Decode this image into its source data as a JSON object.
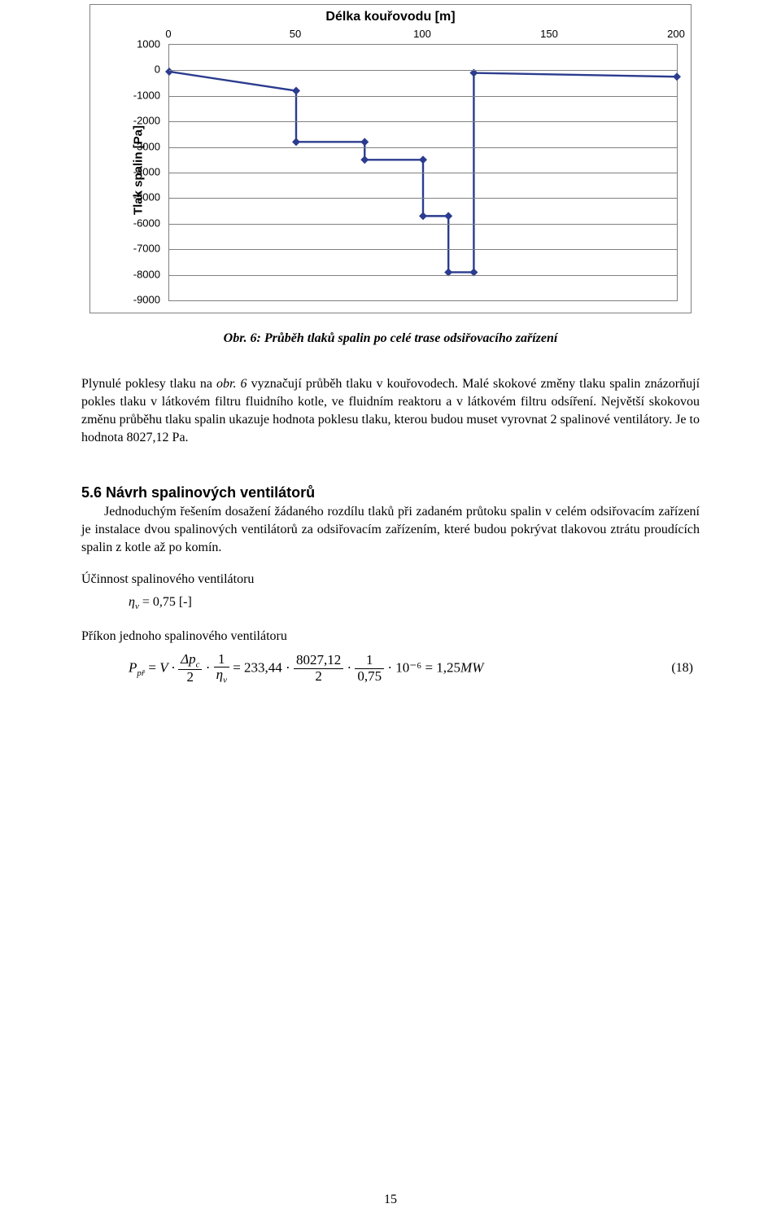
{
  "chart": {
    "type": "line",
    "title": "Délka kouřovodu [m]",
    "ylabel": "Tlak spalin [Pa]",
    "title_fontsize": 16,
    "label_fontsize": 15,
    "tick_fontsize": 13,
    "background_color": "#ffffff",
    "border_color": "#808080",
    "grid_color": "#808080",
    "line_color": "#2b3c8f",
    "marker_color": "#2b3c8f",
    "line_width": 2.4,
    "marker_size": 5,
    "xlim": [
      0,
      200
    ],
    "ylim": [
      -9000,
      1000
    ],
    "xticks": [
      0,
      50,
      100,
      150,
      200
    ],
    "yticks": [
      1000,
      0,
      -1000,
      -2000,
      -3000,
      -4000,
      -5000,
      -6000,
      -7000,
      -8000,
      -9000
    ],
    "points_x": [
      0,
      50,
      50,
      77,
      77,
      100,
      100,
      110,
      110,
      120,
      120,
      200
    ],
    "points_y": [
      -50,
      -800,
      -2800,
      -2800,
      -3500,
      -3500,
      -5700,
      -5700,
      -7900,
      -7900,
      -100,
      -250
    ]
  },
  "caption": "Obr. 6: Průběh tlaků spalin po celé trase odsiřovacího zařízení",
  "para1": "Plynulé poklesy tlaku na obr. 6 vyznačují průběh tlaku v kouřovodech. Malé skokové změny tlaku spalin znázorňují pokles tlaku v látkovém filtru fluidního kotle, ve fluidním reaktoru a v látkovém filtru odsíření. Největší skokovou změnu průběhu tlaku spalin ukazuje hodnota poklesu tlaku, kterou budou muset vyrovnat 2 spalinové ventilátory. Je to hodnota 8027,12 Pa.",
  "section": "5.6 Návrh spalinových ventilátorů",
  "para2": "Jednoduchým řešením dosažení žádaného rozdílu tlaků při zadaném průtoku spalin v celém odsiřovacím zařízení je instalace dvou spalinových ventilátorů za odsiřovacím zařízením, které budou pokrývat tlakovou ztrátu proudících spalin z kotle až po komín.",
  "eff_label": "Účinnost spalinového ventilátoru",
  "eff_eq_sym": "η",
  "eff_eq_sub": "v",
  "eff_eq_val": " = 0,75  [-]",
  "power_label": "Příkon jednoho spalinového ventilátoru",
  "eq18": {
    "lhs_P": "P",
    "lhs_sub": "př",
    "eq": " = ",
    "V": "V ·",
    "dp_num": "Δp",
    "dp_sub": "c",
    "two": "2",
    "dot": " · ",
    "one": "1",
    "etav_sym": "η",
    "etav_sub": "v",
    "mid": " = 233,44 · ",
    "num2": "8027,12",
    "dot2": " · ",
    "one2": "1",
    "den2": "0,75",
    "tail": " · 10⁻⁶ = 1,25",
    "unit": "MW",
    "num": "(18)"
  },
  "page_number": "15"
}
